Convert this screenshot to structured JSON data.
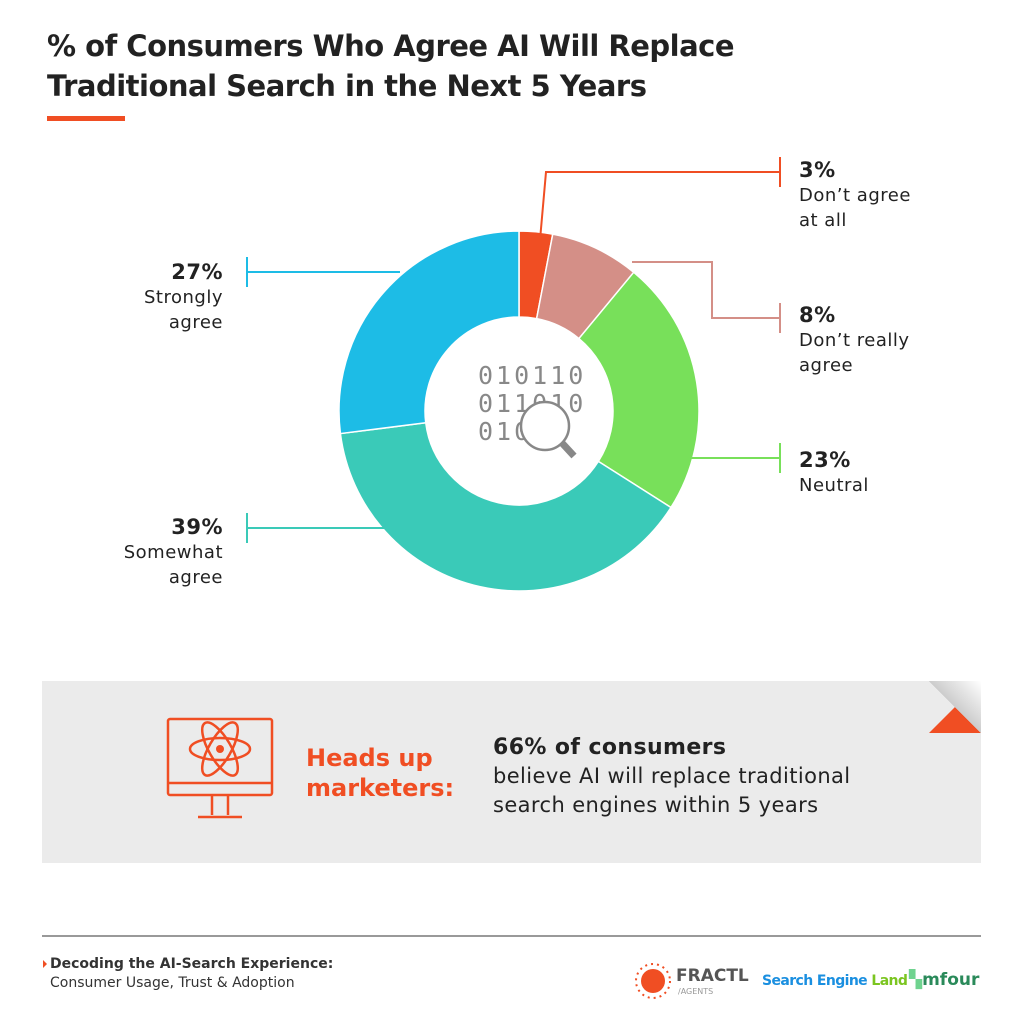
{
  "chart_data": {
    "type": "pie",
    "variant": "donut",
    "title": "% of Consumers Who Agree AI Will Replace Traditional Search in the Next 5 Years",
    "title_lines": [
      "% of Consumers Who Agree AI Will Replace",
      "Traditional Search in the Next 5 Years"
    ],
    "slices": [
      {
        "label": "Don't agree at all",
        "label_lines": [
          "Don’t agree",
          "at all"
        ],
        "value": 3,
        "display": "3%",
        "color": "#F04E23"
      },
      {
        "label": "Don't really agree",
        "label_lines": [
          "Don’t really",
          "agree"
        ],
        "value": 8,
        "display": "8%",
        "color": "#D48F87"
      },
      {
        "label": "Neutral",
        "label_lines": [
          "Neutral"
        ],
        "value": 23,
        "display": "23%",
        "color": "#78E05A"
      },
      {
        "label": "Somewhat agree",
        "label_lines": [
          "Somewhat",
          "agree"
        ],
        "value": 39,
        "display": "39%",
        "color": "#3ACAB8"
      },
      {
        "label": "Strongly agree",
        "label_lines": [
          "Strongly",
          "agree"
        ],
        "value": 27,
        "display": "27%",
        "color": "#1DBCE6"
      }
    ]
  },
  "center_icon": "binary-search-icon",
  "center_binary": [
    "010110",
    "011010",
    "010"
  ],
  "callout": {
    "heading_lines": [
      "Heads up",
      "marketers:"
    ],
    "stat": "66% of consumers",
    "body_lines": [
      "believe AI will replace traditional",
      "search engines within 5 years"
    ],
    "icon": "monitor-atom-icon"
  },
  "footer": {
    "line1": "Decoding the AI-Search Experience:",
    "line2": "Consumer Usage, Trust & Adoption",
    "logos": {
      "fractl": "FRACTL",
      "fractl_sub": "/AGENTS",
      "sel_a": "Search Engine",
      "sel_b": "Land",
      "mfour": "mfour"
    }
  },
  "colors": {
    "accent": "#F04E23",
    "box": "#EBEBEB"
  }
}
